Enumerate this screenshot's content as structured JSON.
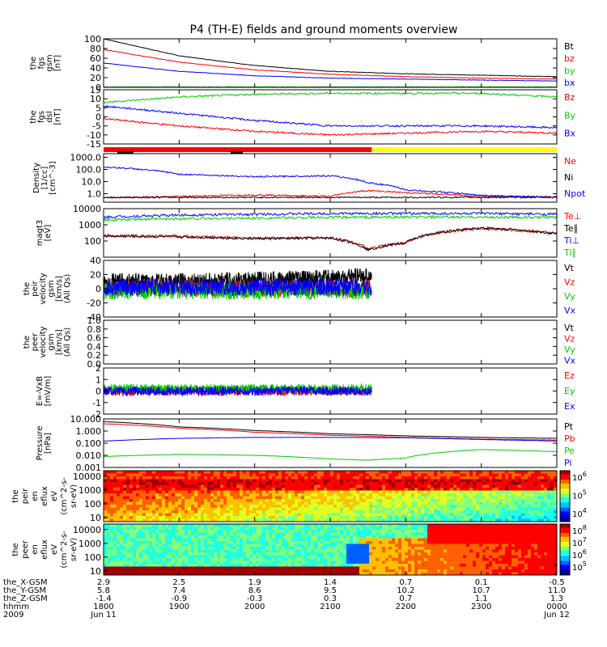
{
  "title": "P4 (TH-E) fields and ground moments overview",
  "chart_data": {
    "type": "line",
    "title": "P4 (TH-E) fields and ground moments overview",
    "x_axis": {
      "row_labels": [
        "the_X-GSM",
        "the_Y-GSM",
        "the_Z-GSM",
        "hhmm",
        "2009"
      ],
      "ticks": [
        {
          "values": [
            "2.9",
            "5.8",
            "-1.4",
            "1800",
            "Jun 11"
          ]
        },
        {
          "values": [
            "2.5",
            "7.4",
            "-0.9",
            "1900",
            ""
          ]
        },
        {
          "values": [
            "1.9",
            "8.6",
            "-0.3",
            "2000",
            ""
          ]
        },
        {
          "values": [
            "1.4",
            "9.5",
            "0.3",
            "2100",
            ""
          ]
        },
        {
          "values": [
            "0.7",
            "10.2",
            "0.7",
            "2200",
            ""
          ]
        },
        {
          "values": [
            "0.1",
            "10.7",
            "1.1",
            "2300",
            ""
          ]
        },
        {
          "values": [
            "-0.5",
            "11.0",
            "1.3",
            "0000",
            "Jun 12"
          ]
        }
      ],
      "range_hours": [
        18,
        24
      ]
    },
    "panels": [
      {
        "id": "fgs-gsm",
        "ylabel": [
          "the",
          "fgs",
          "gsm",
          "[nT]"
        ],
        "ylim": [
          0,
          100
        ],
        "yticks": [
          "0",
          "20",
          "40",
          "60",
          "80",
          "100"
        ],
        "scale": "linear",
        "series": [
          {
            "name": "Bt",
            "color": "#000000",
            "x": [
              18,
              19,
              20,
              21,
              22,
              23,
              24
            ],
            "y": [
              100,
              65,
              45,
              33,
              28,
              25,
              22
            ]
          },
          {
            "name": "bz",
            "color": "#ff0000",
            "x": [
              18,
              19,
              20,
              21,
              22,
              23,
              24
            ],
            "y": [
              78,
              52,
              36,
              27,
              22,
              19,
              17
            ]
          },
          {
            "name": "by",
            "color": "#00cc00",
            "x": [
              18,
              19,
              20,
              21,
              22,
              23,
              24
            ],
            "y": [
              1,
              1,
              1,
              1,
              1,
              1,
              1
            ]
          },
          {
            "name": "bx",
            "color": "#0000ff",
            "x": [
              18,
              19,
              20,
              21,
              22,
              23,
              24
            ],
            "y": [
              50,
              33,
              24,
              19,
              17,
              15,
              13
            ]
          }
        ]
      },
      {
        "id": "fgs-dsl",
        "ylabel": [
          "the",
          "fgs",
          "dsl",
          "[nT]"
        ],
        "ylim": [
          -15,
          15
        ],
        "yticks": [
          "-15",
          "-10",
          "-5",
          "0",
          "5",
          "10",
          "15"
        ],
        "scale": "linear",
        "series": [
          {
            "name": "Bz",
            "color": "#ff0000",
            "x": [
              18,
              19,
              20,
              21,
              22,
              23,
              24
            ],
            "y": [
              -1,
              -5,
              -8,
              -10,
              -9,
              -8,
              -9
            ]
          },
          {
            "name": "By",
            "color": "#00cc00",
            "x": [
              18,
              19,
              20,
              21,
              22,
              23,
              24
            ],
            "y": [
              8,
              11,
              12.5,
              13,
              13,
              13,
              11
            ]
          },
          {
            "name": "Bx",
            "color": "#0000ff",
            "x": [
              18,
              19,
              20,
              21,
              22,
              23,
              24
            ],
            "y": [
              6,
              2,
              -2,
              -5,
              -5,
              -5,
              -6
            ]
          }
        ]
      },
      {
        "id": "density",
        "ylabel": [
          "Density",
          "[1/cc]",
          "[cm^-3]"
        ],
        "ylim": [
          0.2,
          2000
        ],
        "yticks": [
          "1.0",
          "10.0",
          "100.0",
          "1000.0"
        ],
        "scale": "log",
        "series": [
          {
            "name": "Ne",
            "color": "#ff0000",
            "x": [
              18,
              19,
              20,
              21,
              21.5,
              22,
              23,
              24
            ],
            "y": [
              0.45,
              0.6,
              0.8,
              0.6,
              1.8,
              1.2,
              0.6,
              0.55
            ]
          },
          {
            "name": "Ni",
            "color": "#000000",
            "x": [
              18,
              19,
              20,
              21,
              22,
              23,
              24
            ],
            "y": [
              0.5,
              0.5,
              0.5,
              0.5,
              0.5,
              0.5,
              0.5
            ]
          },
          {
            "name": "Npot",
            "color": "#0000ff",
            "x": [
              18,
              19,
              20,
              21,
              21.5,
              22,
              23,
              24
            ],
            "y": [
              160,
              40,
              25,
              30,
              8,
              2,
              0.7,
              0.5
            ]
          }
        ]
      },
      {
        "id": "temperature",
        "ylabel": [
          "magt3",
          "[eV]"
        ],
        "ylim": [
          10,
          10000
        ],
        "yticks": [
          "100",
          "1000",
          "10000"
        ],
        "scale": "log",
        "series": [
          {
            "name": "Te⊥",
            "color": "#ff0000",
            "x": [
              18,
              19,
              20,
              21,
              21.5,
              22,
              23,
              24
            ],
            "y": [
              220,
              200,
              150,
              160,
              30,
              80,
              600,
              300
            ]
          },
          {
            "name": "Te∥",
            "color": "#000000",
            "x": [
              18,
              19,
              20,
              21,
              21.5,
              22,
              23,
              24
            ],
            "y": [
              200,
              180,
              140,
              150,
              28,
              75,
              650,
              280
            ]
          },
          {
            "name": "Ti⊥",
            "color": "#0000ff",
            "x": [
              18,
              19,
              20,
              21,
              22,
              23,
              24
            ],
            "y": [
              3000,
              4000,
              4500,
              5000,
              5000,
              5000,
              4500
            ]
          },
          {
            "name": "Ti∥",
            "color": "#00cc00",
            "x": [
              18,
              19,
              20,
              21,
              22,
              23,
              24
            ],
            "y": [
              2000,
              2400,
              2600,
              2900,
              3000,
              3000,
              2800
            ]
          }
        ]
      },
      {
        "id": "peir-velocity",
        "ylabel": [
          "the",
          "peir",
          "velocity",
          "gsm",
          "[km/s]",
          "(All Qs)"
        ],
        "ylim": [
          -40,
          40
        ],
        "yticks": [
          "-40",
          "-20",
          "0",
          "20",
          "40"
        ],
        "scale": "linear",
        "series": [
          {
            "name": "Vt",
            "color": "#000000",
            "x": [
              18,
              19,
              20,
              21,
              21.55
            ],
            "y": [
              10,
              10,
              12,
              15,
              18
            ]
          },
          {
            "name": "Vz",
            "color": "#ff0000",
            "x": [
              18,
              19,
              20,
              21,
              21.55
            ],
            "y": [
              0,
              0,
              0,
              0,
              0
            ]
          },
          {
            "name": "Vy",
            "color": "#00cc00",
            "x": [
              18,
              19,
              20,
              21,
              21.55
            ],
            "y": [
              -3,
              -3,
              -3,
              -3,
              -3
            ]
          },
          {
            "name": "Vx",
            "color": "#0000ff",
            "x": [
              18,
              19,
              20,
              21,
              21.55
            ],
            "y": [
              2,
              2,
              2,
              2,
              2
            ]
          }
        ]
      },
      {
        "id": "peer-velocity",
        "ylabel": [
          "the",
          "peer",
          "velocity",
          "gsm",
          "[km/s]",
          "(All Qs)"
        ],
        "ylim": [
          0,
          1
        ],
        "yticks": [
          "0.0",
          "0.2",
          "0.4",
          "0.6",
          "0.8",
          "1.0"
        ],
        "scale": "linear",
        "series": [
          {
            "name": "Vt",
            "color": "#000000",
            "x": [],
            "y": []
          },
          {
            "name": "Vz",
            "color": "#ff0000",
            "x": [],
            "y": []
          },
          {
            "name": "Vy",
            "color": "#00cc00",
            "x": [],
            "y": []
          },
          {
            "name": "Vx",
            "color": "#0000ff",
            "x": [],
            "y": []
          }
        ]
      },
      {
        "id": "efield",
        "ylabel": [
          "E=-VxB",
          "[mV/m]"
        ],
        "ylim": [
          -2,
          2
        ],
        "yticks": [
          "-2",
          "-1",
          "0",
          "1",
          "2"
        ],
        "scale": "linear",
        "series": [
          {
            "name": "Ez",
            "color": "#ff0000",
            "x": [
              18,
              19,
              20,
              21,
              21.55
            ],
            "y": [
              0,
              0,
              0,
              0,
              0
            ]
          },
          {
            "name": "Ey",
            "color": "#00cc00",
            "x": [
              18,
              19,
              20,
              21,
              21.55
            ],
            "y": [
              0.2,
              0.2,
              0.2,
              0.2,
              0.2
            ]
          },
          {
            "name": "Ex",
            "color": "#0000ff",
            "x": [
              18,
              19,
              20,
              21,
              21.55
            ],
            "y": [
              0,
              0,
              0,
              0,
              0
            ]
          }
        ]
      },
      {
        "id": "pressure",
        "ylabel": [
          "Pressure",
          "[nPa]"
        ],
        "ylim": [
          0.001,
          10
        ],
        "yticks": [
          "0.001",
          "0.010",
          "0.100",
          "1.000",
          "10.000"
        ],
        "scale": "log",
        "series": [
          {
            "name": "Pt",
            "color": "#000000",
            "x": [
              18,
              19,
              20,
              21,
              22,
              23,
              24
            ],
            "y": [
              6,
              2.2,
              1.1,
              0.6,
              0.4,
              0.3,
              0.25
            ]
          },
          {
            "name": "Pb",
            "color": "#ff0000",
            "x": [
              18,
              19,
              20,
              21,
              22,
              23,
              24
            ],
            "y": [
              4,
              1.7,
              0.8,
              0.45,
              0.3,
              0.22,
              0.18
            ]
          },
          {
            "name": "Pe",
            "color": "#00cc00",
            "x": [
              18,
              19,
              20,
              21,
              21.5,
              22,
              23,
              24
            ],
            "y": [
              0.008,
              0.012,
              0.01,
              0.005,
              0.004,
              0.006,
              0.03,
              0.02
            ]
          },
          {
            "name": "Pi",
            "color": "#0000ff",
            "x": [
              18,
              19,
              20,
              21,
              22,
              23,
              24
            ],
            "y": [
              0.15,
              0.25,
              0.3,
              0.3,
              0.28,
              0.2,
              0.15
            ]
          }
        ]
      }
    ],
    "spectrograms": [
      {
        "id": "peir-en-eflux",
        "type": "heatmap",
        "ylabel": [
          "the",
          "peir",
          "en",
          "eflux",
          "eV",
          "(cm^2-s-",
          "sr-eV)"
        ],
        "yticks": [
          "10",
          "100",
          "1000",
          "10000"
        ],
        "scale": "log",
        "colorbar_ticks": [
          "10^4",
          "10^5",
          "10^6"
        ]
      },
      {
        "id": "peer-en-eflux",
        "type": "heatmap",
        "ylabel": [
          "the",
          "peer",
          "en",
          "eflux",
          "eV",
          "(cm^2-s-",
          "sr-eV)"
        ],
        "yticks": [
          "10",
          "100",
          "1000",
          "10000"
        ],
        "scale": "log",
        "colorbar_ticks": [
          "10^5",
          "10^6",
          "10^7",
          "10^8"
        ]
      }
    ],
    "mode_bar": {
      "segments": [
        {
          "from": 18,
          "to": 21.55,
          "color": "#ff0000"
        },
        {
          "from": 21.55,
          "to": 24,
          "color": "#ffff00"
        }
      ]
    }
  }
}
